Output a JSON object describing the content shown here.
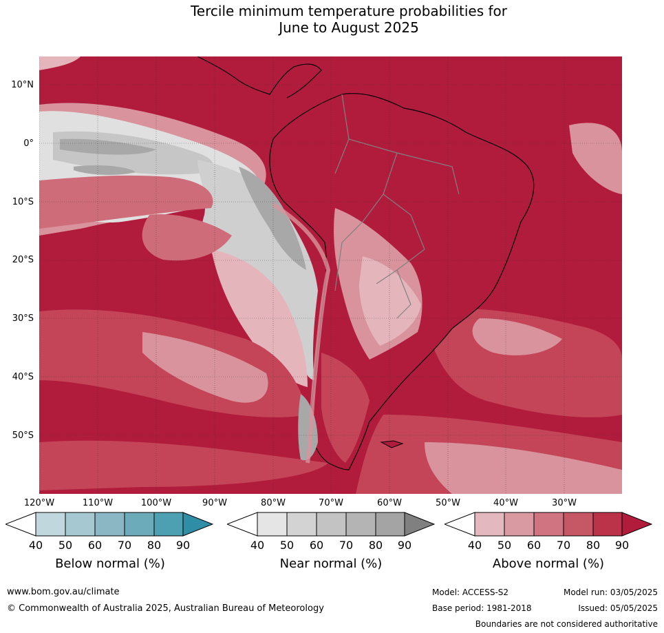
{
  "title": {
    "line1": "Tercile minimum temperature probabilities for",
    "line2": "June to August 2025"
  },
  "map": {
    "latitude_labels": [
      "10°N",
      "0°",
      "10°S",
      "20°S",
      "30°S",
      "40°S",
      "50°S"
    ],
    "longitude_labels": [
      "120°W",
      "110°W",
      "100°W",
      "90°W",
      "80°W",
      "70°W",
      "60°W",
      "50°W",
      "40°W",
      "30°W"
    ],
    "colors": {
      "ocean_above_90": "#b21c3c",
      "above_80": "#c44458",
      "above_70": "#cf6c7a",
      "above_60": "#d8939c",
      "above_50": "#e4b6bc",
      "near_50": "#e4e4e4",
      "near_60": "#d2d2d2",
      "near_70": "#c4c4c4",
      "near_80": "#a8a8a8",
      "coast": "#000000",
      "border": "#808080"
    }
  },
  "legends": {
    "below": {
      "title": "Below normal (%)",
      "ticks": [
        "40",
        "50",
        "60",
        "70",
        "80",
        "90"
      ],
      "colors": [
        "#ffffff",
        "#bfd7dd",
        "#a6c8d0",
        "#8ab7c3",
        "#6cabb9",
        "#4da0b1",
        "#2f8ea5"
      ]
    },
    "near": {
      "title": "Near normal (%)",
      "ticks": [
        "40",
        "50",
        "60",
        "70",
        "80",
        "90"
      ],
      "colors": [
        "#ffffff",
        "#e5e5e5",
        "#d3d3d3",
        "#c3c3c3",
        "#b4b4b4",
        "#a4a4a4",
        "#808080"
      ]
    },
    "above": {
      "title": "Above normal (%)",
      "ticks": [
        "40",
        "50",
        "60",
        "70",
        "80",
        "90"
      ],
      "colors": [
        "#ffffff",
        "#e4b8bf",
        "#d99aa2",
        "#cf7480",
        "#c65866",
        "#bb3349",
        "#b21c3c"
      ]
    }
  },
  "footer": {
    "url": "www.bom.gov.au/climate",
    "copyright": "© Commonwealth of Australia 2025, Australian Bureau of Meteorology",
    "model": "Model: ACCESS-S2",
    "base_period": "Base period: 1981-2018",
    "model_run": "Model run: 03/05/2025",
    "issued": "Issued: 05/05/2025",
    "disclaimer": "Boundaries are not considered authoritative"
  }
}
